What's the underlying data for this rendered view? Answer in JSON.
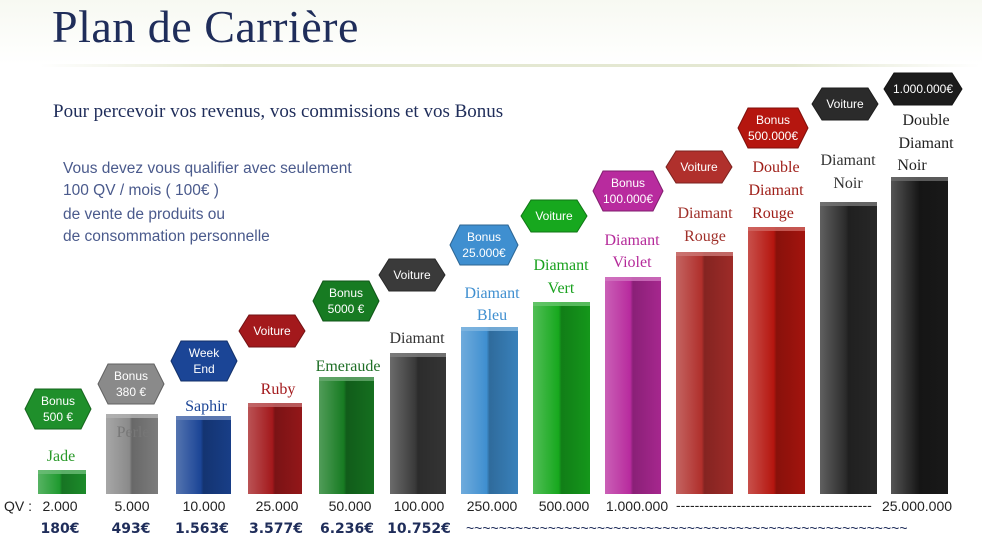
{
  "title": "Plan de Carrière",
  "subtitle": "Pour percevoir vos revenus, vos commissions et vos Bonus",
  "note": {
    "line1": "Vous devez vous qualifier avec seulement",
    "line2": "100 QV / mois  ( 100€ )",
    "line3": "de vente de produits ou",
    "line4": "de consommation personnelle"
  },
  "qv_label": "QV :",
  "dash_line_text": "------------------------------------------",
  "tilde_line_text": "~~~~~~~~~~~~~~~~~~~~~~~~~~~~~~~~~~~~~~~~~~~~~~~~~~~~~~",
  "chart_data": {
    "type": "bar",
    "categories": [
      "Jade",
      "Perle",
      "Saphir",
      "Ruby",
      "Emeraude",
      "Diamant",
      "Diamant Bleu",
      "Diamant Vert",
      "Diamant Violet",
      "Diamant Rouge",
      "Double Diamant Rouge",
      "Diamant Noir",
      "Double Diamant Noir"
    ],
    "qv_labels": [
      "2.000",
      "5.000",
      "10.000",
      "25.000",
      "50.000",
      "100.000",
      "250.000",
      "500.000",
      "1.000.000",
      "",
      "",
      "",
      "25.000.000"
    ],
    "earnings": [
      "180€",
      "493€",
      "1.563€",
      "3.577€",
      "6.236€",
      "10.752€",
      "",
      "",
      "",
      "",
      "",
      "",
      ""
    ],
    "bar_levels": [
      1,
      2,
      3,
      4,
      5,
      6,
      7,
      8,
      9,
      10,
      11,
      12,
      13
    ],
    "colors": [
      "#1f9a2f",
      "#8a8a8a",
      "#1b4596",
      "#a3191c",
      "#177b22",
      "#3a3a3a",
      "#3f8fd0",
      "#17a81e",
      "#b82b9e",
      "#b0302c",
      "#b5160f",
      "#2b2b2b",
      "#1c1c1c"
    ],
    "label_colors": [
      "#2a9a2a",
      "#777777",
      "#1b4596",
      "#a3191c",
      "#1e6e25",
      "#333333",
      "#3f8fd0",
      "#19a11e",
      "#b52a9a",
      "#a0302a",
      "#a0201a",
      "#333333",
      "#222222"
    ],
    "badges": [
      {
        "lines": [
          "Bonus",
          "500 €"
        ],
        "color": "#1f8f2b"
      },
      {
        "lines": [
          "Bonus",
          "380 €"
        ],
        "color": "#8a8a8a"
      },
      {
        "lines": [
          "Week",
          "End"
        ],
        "color": "#1b4596"
      },
      {
        "lines": [
          "Voiture"
        ],
        "color": "#a3191c"
      },
      {
        "lines": [
          "Bonus",
          "5000 €"
        ],
        "color": "#177b22"
      },
      {
        "lines": [
          "Voiture"
        ],
        "color": "#3a3a3a"
      },
      {
        "lines": [
          "Bonus",
          "25.000€"
        ],
        "color": "#3f8fd0"
      },
      {
        "lines": [
          "Voiture"
        ],
        "color": "#17a81e"
      },
      {
        "lines": [
          "Bonus",
          "100.000€"
        ],
        "color": "#b82b9e"
      },
      {
        "lines": [
          "Voiture"
        ],
        "color": "#b0302c"
      },
      {
        "lines": [
          "Bonus",
          "500.000€"
        ],
        "color": "#b5160f"
      },
      {
        "lines": [
          "Voiture"
        ],
        "color": "#2b2b2b"
      },
      {
        "lines": [
          "1.000.000€"
        ],
        "color": "#1c1c1c"
      }
    ]
  }
}
